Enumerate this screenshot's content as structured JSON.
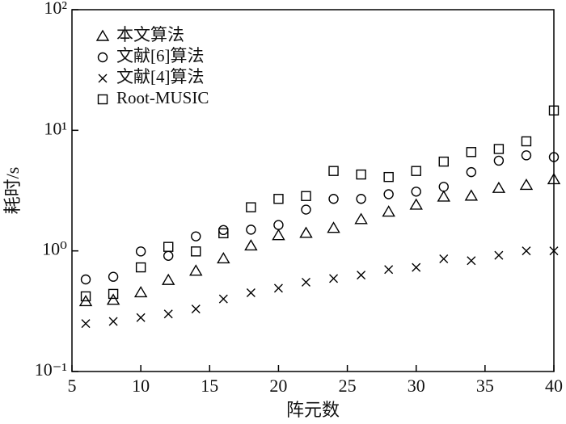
{
  "chart_data": {
    "type": "scatter",
    "xlabel": "阵元数",
    "ylabel": "耗时/s",
    "log_y": true,
    "x": [
      6,
      8,
      10,
      12,
      14,
      16,
      18,
      20,
      22,
      24,
      26,
      28,
      30,
      32,
      34,
      36,
      38,
      40
    ],
    "xlim": [
      5,
      40
    ],
    "xticks": [
      5,
      10,
      15,
      20,
      25,
      30,
      35,
      40
    ],
    "ylim": [
      0.1,
      100
    ],
    "yticks": [
      {
        "value": 0.1,
        "label": "10⁻¹"
      },
      {
        "value": 1,
        "label": "10⁰"
      },
      {
        "value": 10,
        "label": "10¹"
      },
      {
        "value": 100,
        "label": "10²"
      }
    ],
    "legend": "upper left",
    "series": [
      {
        "name": "本文算法",
        "color": "#000000",
        "marker": "triangle",
        "values": [
          0.38,
          0.39,
          0.45,
          0.57,
          0.68,
          0.86,
          1.1,
          1.34,
          1.4,
          1.54,
          1.82,
          2.1,
          2.4,
          2.8,
          2.85,
          3.3,
          3.5,
          3.9
        ]
      },
      {
        "name": "文献[6]算法",
        "color": "#000000",
        "marker": "circle",
        "values": [
          0.58,
          0.61,
          0.99,
          0.91,
          1.32,
          1.49,
          1.5,
          1.64,
          2.2,
          2.7,
          2.7,
          2.95,
          3.1,
          3.4,
          4.5,
          5.6,
          6.2,
          6.0
        ]
      },
      {
        "name": "文献[4]算法",
        "color": "#000000",
        "marker": "cross",
        "values": [
          0.25,
          0.26,
          0.28,
          0.3,
          0.33,
          0.4,
          0.45,
          0.49,
          0.55,
          0.59,
          0.63,
          0.7,
          0.73,
          0.86,
          0.83,
          0.92,
          1.0,
          1.0
        ]
      },
      {
        "name": "Root-MUSIC",
        "color": "#000000",
        "marker": "square",
        "values": [
          0.42,
          0.44,
          0.73,
          1.08,
          0.99,
          1.4,
          2.3,
          2.7,
          2.85,
          4.6,
          4.3,
          4.1,
          4.6,
          5.5,
          6.6,
          7.0,
          8.1,
          14.6
        ]
      }
    ]
  }
}
